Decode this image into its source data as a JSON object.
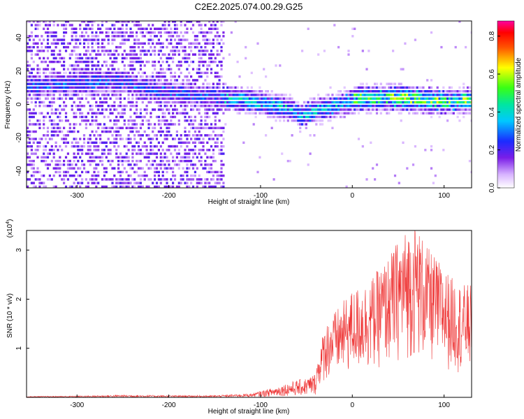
{
  "title": "C2E2.2025.074.00.29.G25",
  "chart_data": [
    {
      "type": "heatmap",
      "xlabel": "Height of straight line (km)",
      "ylabel": "Frequency (Hz)",
      "xlim": [
        -355,
        130
      ],
      "ylim": [
        -50,
        50
      ],
      "xticks": [
        -300,
        -200,
        -100,
        0,
        100
      ],
      "yticks": [
        -40,
        -20,
        0,
        20,
        40
      ],
      "colorbar": {
        "label": "Normalized spectral amplitude",
        "range": [
          0,
          0.88
        ],
        "ticks": [
          "0.0",
          "0.2",
          "0.4",
          "0.6",
          "0.8"
        ],
        "colormap": "rainbow (white-violet-blue-cyan-green-yellow-red-magenta)"
      },
      "ridge_center_hz": {
        "x": [
          -355,
          -300,
          -270,
          -245,
          -220,
          -180,
          -150,
          -120,
          -90,
          -70,
          -58,
          -45,
          -30,
          -10,
          0,
          20,
          50,
          80,
          100,
          130
        ],
        "y": [
          10,
          12,
          13,
          12,
          8,
          5,
          4,
          2,
          -1,
          -3,
          -8,
          -5,
          -3,
          0,
          2,
          3,
          3,
          2,
          1,
          2
        ]
      },
      "grid": false
    },
    {
      "type": "line",
      "xlabel": "Height of straight line (km)",
      "ylabel": "SNR (10 * v/v)",
      "y_multiplier": "(x10^4)",
      "xlim": [
        -355,
        130
      ],
      "ylim": [
        0,
        3.4
      ],
      "xticks": [
        -300,
        -200,
        -100,
        0,
        100
      ],
      "yticks": [
        1,
        2,
        3
      ],
      "series": [
        {
          "color": "#ee3030",
          "envelope_x": [
            -355,
            -300,
            -250,
            -200,
            -150,
            -110,
            -90,
            -70,
            -50,
            -40,
            -30,
            -20,
            -10,
            0,
            10,
            20,
            30,
            40,
            50,
            60,
            70,
            80,
            90,
            100,
            110,
            120,
            130
          ],
          "envelope_y": [
            0.02,
            0.03,
            0.05,
            0.04,
            0.04,
            0.08,
            0.18,
            0.3,
            0.4,
            0.5,
            1.3,
            1.5,
            1.7,
            1.9,
            2.0,
            2.1,
            2.3,
            2.5,
            2.8,
            3.0,
            3.1,
            2.7,
            2.5,
            2.3,
            2.1,
            2.0,
            2.0
          ]
        }
      ],
      "grid": false
    }
  ]
}
